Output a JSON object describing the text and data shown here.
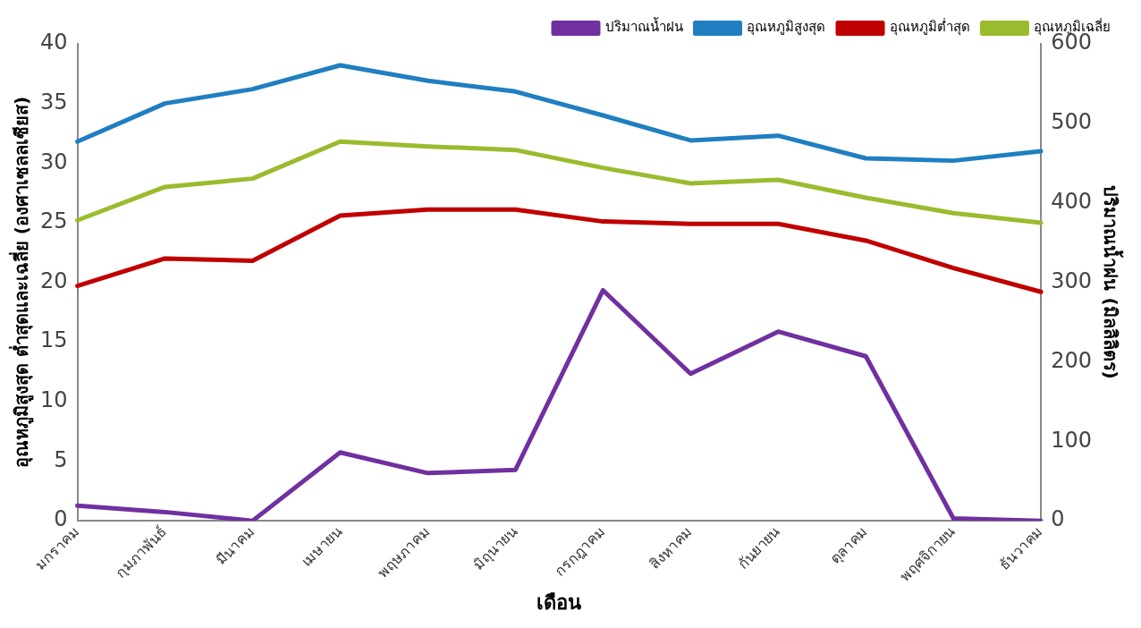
{
  "chart_data": {
    "type": "line",
    "xlabel": "เดือน",
    "ylabel": "อุณหภูมิสูงสุด ต่ำสุดและเฉลี่ย (องศาเซลลเซียส)",
    "y2label": "ปริมาณน้ำฝน (มิลลิลิตร)",
    "categories": [
      "มกราคม",
      "กุมภาพันธ์",
      "มีนาคม",
      "เมษายน",
      "พฤษภาคม",
      "มิถุนายน",
      "กรกฎาคม",
      "สิงหาคม",
      "กันยายน",
      "ตุลาคม",
      "พฤศจิกายน",
      "ธันวาคม"
    ],
    "series": [
      {
        "name": "ปริมาณน้ำฝน",
        "color": "#7030a0",
        "axis": "y2",
        "values": [
          19,
          11,
          0,
          86,
          60,
          64,
          290,
          185,
          238,
          207,
          3,
          0
        ]
      },
      {
        "name": "อุณหภูมิสูงสุด",
        "color": "#1f7fc1",
        "values": [
          31.8,
          35.0,
          36.2,
          38.2,
          36.9,
          36.0,
          34.0,
          31.9,
          32.3,
          30.4,
          30.2,
          31.0
        ]
      },
      {
        "name": "อุณหภูมิต่ำสุด",
        "color": "#c00000",
        "values": [
          19.7,
          22.0,
          21.8,
          25.6,
          26.1,
          26.1,
          25.1,
          24.9,
          24.9,
          23.5,
          21.2,
          19.2
        ]
      },
      {
        "name": "อุณหภูมิเฉลี่ย",
        "color": "#9bbb2f",
        "values": [
          25.2,
          28.0,
          28.7,
          31.8,
          31.4,
          31.1,
          29.6,
          28.3,
          28.6,
          27.1,
          25.8,
          25.0
        ]
      }
    ],
    "ylim": [
      0,
      40
    ],
    "yticks": [
      0,
      5,
      10,
      15,
      20,
      25,
      30,
      35,
      40
    ],
    "y2lim": [
      0,
      600
    ],
    "y2ticks": [
      0,
      100,
      200,
      300,
      400,
      500,
      600
    ],
    "grid": false,
    "legend": "top right",
    "marker": "none",
    "line_style": "solid"
  }
}
